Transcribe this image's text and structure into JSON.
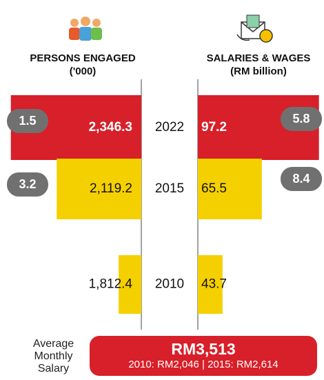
{
  "chart_data": {
    "type": "butterfly",
    "categories": [
      "2022",
      "2015",
      "2010"
    ],
    "series": [
      {
        "name": "PERSONS ENGAGED",
        "unit": "('000)",
        "colors": [
          "#d7202a",
          "#f5d000",
          "#f5d000"
        ],
        "values": [
          2346.3,
          2119.2,
          1812.4
        ],
        "value_labels": [
          "2,346.3",
          "2,119.2",
          "1,812.4"
        ],
        "growth": [
          1.5,
          3.2
        ],
        "xlim": [
          1700,
          2400
        ]
      },
      {
        "name": "SALARIES & WAGES",
        "unit": "(RM billion)",
        "colors": [
          "#d7202a",
          "#f5d000",
          "#f5d000"
        ],
        "values": [
          97.2,
          65.5,
          43.7
        ],
        "growth": [
          5.8,
          8.4
        ],
        "xlim": [
          30,
          100
        ]
      }
    ]
  },
  "salary": {
    "label": "Average Monthly Salary",
    "value": "RM3,513",
    "history": "2010: RM2,046 | 2015: RM2,614"
  }
}
